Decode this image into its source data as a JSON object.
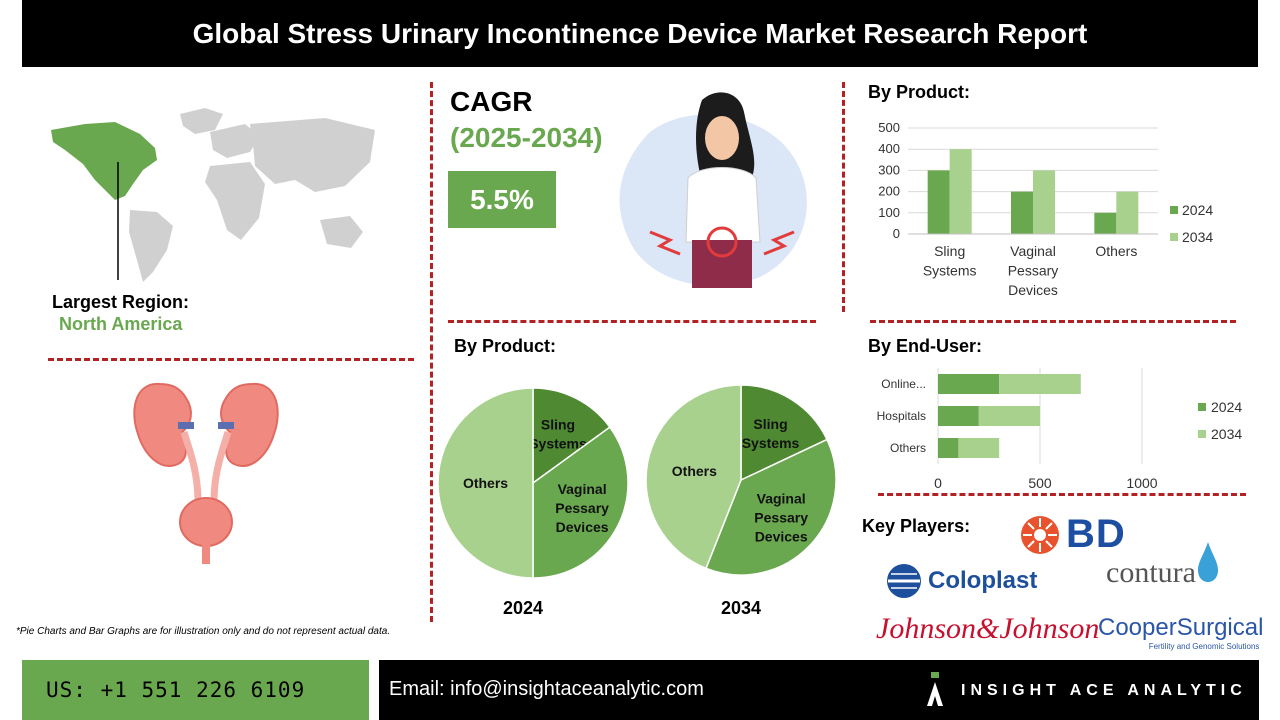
{
  "header": {
    "title": "Global Stress Urinary Incontinence Device Market Research Report"
  },
  "region": {
    "label": "Largest Region:",
    "value": "North America"
  },
  "cagr": {
    "title": "CAGR",
    "period": "(2025-2034)",
    "value": "5.5%"
  },
  "sections": {
    "by_product_bar": "By Product:",
    "by_product_pie": "By Product:",
    "by_end_user": "By End-User:",
    "key_players": "Key Players:"
  },
  "players": [
    "BD",
    "Coloplast",
    "contura",
    "Johnson&Johnson",
    "CooperSurgical",
    "Fertility and Genomic Solutions"
  ],
  "note": "*Pie Charts and Bar Graphs are for illustration only and do not represent actual data.",
  "footer": {
    "phone": "US: +1 551 226 6109",
    "email": "Email: info@insightaceanalytic.com",
    "brand": "INSIGHT ACE ANALYTIC"
  },
  "colors": {
    "dark_green": "#4f8a33",
    "mid_green": "#6aa84f",
    "light_green": "#a9d18e",
    "accent_red": "#b22222"
  },
  "chart_data": [
    {
      "type": "bar",
      "title": "By Product:",
      "categories": [
        "Sling Systems",
        "Vaginal Pessary Devices",
        "Others"
      ],
      "series": [
        {
          "name": "2024",
          "values": [
            300,
            200,
            100
          ]
        },
        {
          "name": "2034",
          "values": [
            400,
            300,
            200
          ]
        }
      ],
      "ylim": [
        0,
        500
      ],
      "yticks": [
        0,
        100,
        200,
        300,
        400,
        500
      ],
      "legend": "right",
      "grid": true
    },
    {
      "type": "bar",
      "orientation": "horizontal-stacked",
      "title": "By End-User:",
      "categories": [
        "Online...",
        "Hospitals",
        "Others"
      ],
      "series": [
        {
          "name": "2024",
          "values": [
            300,
            200,
            100
          ]
        },
        {
          "name": "2034",
          "values": [
            400,
            300,
            200
          ]
        }
      ],
      "xlim": [
        0,
        1000
      ],
      "xticks": [
        0,
        500,
        1000
      ],
      "legend": "right",
      "grid": true
    },
    {
      "type": "pie",
      "label": "2024",
      "slices": [
        {
          "name": "Sling Systems",
          "value": 15
        },
        {
          "name": "Vaginal Pessary Devices",
          "value": 35
        },
        {
          "name": "Others",
          "value": 50
        }
      ]
    },
    {
      "type": "pie",
      "label": "2034",
      "slices": [
        {
          "name": "Sling Systems",
          "value": 18
        },
        {
          "name": "Vaginal Pessary Devices",
          "value": 38
        },
        {
          "name": "Others",
          "value": 44
        }
      ]
    }
  ]
}
